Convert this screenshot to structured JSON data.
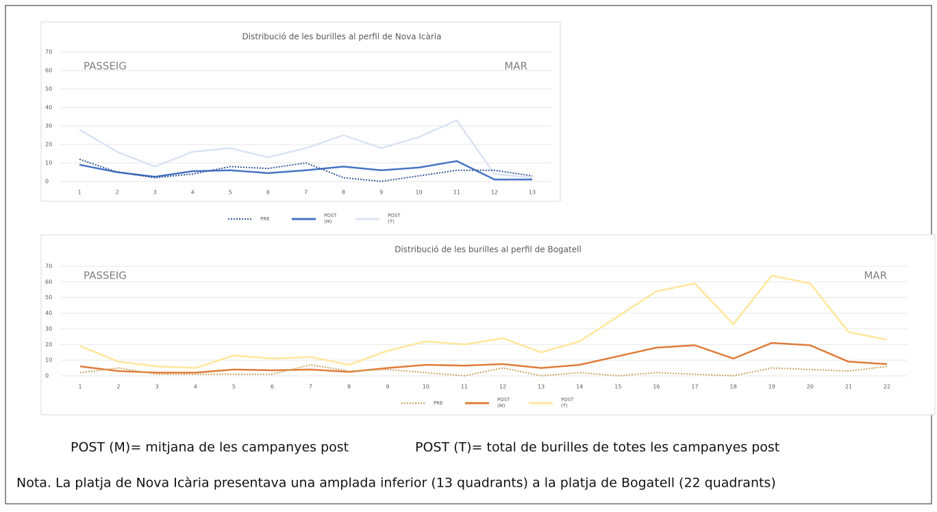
{
  "chart_data": [
    {
      "type": "line",
      "title": "Distribució de les burilles al perfil de Nova Icària",
      "annotations": [
        "PASSEIG",
        "MAR"
      ],
      "categories": [
        "1",
        "2",
        "3",
        "4",
        "5",
        "6",
        "7",
        "8",
        "9",
        "10",
        "11",
        "12",
        "13"
      ],
      "ylim": [
        0,
        70
      ],
      "yticks": [
        0,
        10,
        20,
        30,
        40,
        50,
        60,
        70
      ],
      "grid": true,
      "series": [
        {
          "name": "PRE",
          "color": "#2f5597",
          "style": "dotted",
          "values": [
            12,
            5,
            2,
            4,
            8,
            7,
            10,
            2,
            0,
            3,
            6,
            6,
            3
          ]
        },
        {
          "name": "POST (M)",
          "color": "#4472c4",
          "style": "solid",
          "values": [
            9,
            5,
            2.5,
            5.5,
            6,
            4.5,
            6,
            8,
            6,
            7.5,
            11,
            1,
            1
          ]
        },
        {
          "name": "POST (T)",
          "color": "#dae3f3",
          "style": "solid",
          "values": [
            28,
            16,
            8,
            16,
            18,
            13,
            18,
            25,
            18,
            24,
            33,
            4,
            2
          ]
        }
      ]
    },
    {
      "type": "line",
      "title": "Distribució de les burilles al perfil de Bogatell",
      "annotations": [
        "PASSEIG",
        "MAR"
      ],
      "categories": [
        "1",
        "2",
        "3",
        "4",
        "5",
        "6",
        "7",
        "8",
        "9",
        "10",
        "11",
        "12",
        "13",
        "14",
        "15",
        "16",
        "17",
        "18",
        "19",
        "20",
        "21",
        "22"
      ],
      "ylim": [
        0,
        70
      ],
      "yticks": [
        0,
        10,
        20,
        30,
        40,
        50,
        60,
        70
      ],
      "grid": true,
      "series": [
        {
          "name": "PRE",
          "color": "#c9a25c",
          "style": "dotted",
          "values": [
            2,
            5,
            1,
            1,
            1,
            1,
            7,
            3,
            4,
            2,
            0,
            5,
            0,
            2,
            0,
            2,
            1,
            0,
            5,
            4,
            3,
            6
          ]
        },
        {
          "name": "POST (M)",
          "color": "#e07b39",
          "style": "solid",
          "values": [
            6,
            3,
            2,
            2,
            4,
            3.5,
            4,
            2.5,
            5,
            7,
            6.5,
            7.5,
            5,
            7,
            12.5,
            18,
            19.5,
            11,
            21,
            19.5,
            9,
            7.5
          ]
        },
        {
          "name": "POST (T)",
          "color": "#ffe699",
          "style": "solid",
          "values": [
            19,
            9,
            6,
            5,
            13,
            11,
            12,
            7,
            16,
            22,
            20,
            24,
            15,
            22,
            38,
            54,
            59,
            33,
            64,
            59,
            28,
            23
          ]
        }
      ]
    }
  ],
  "definitions": [
    "POST (M)= mitjana de les campanyes post",
    "POST (T)= total de burilles de totes les campanyes post"
  ],
  "note": "Nota. La platja de Nova Icària presentava una amplada inferior (13 quadrants) a la platja de Bogatell (22 quadrants)"
}
